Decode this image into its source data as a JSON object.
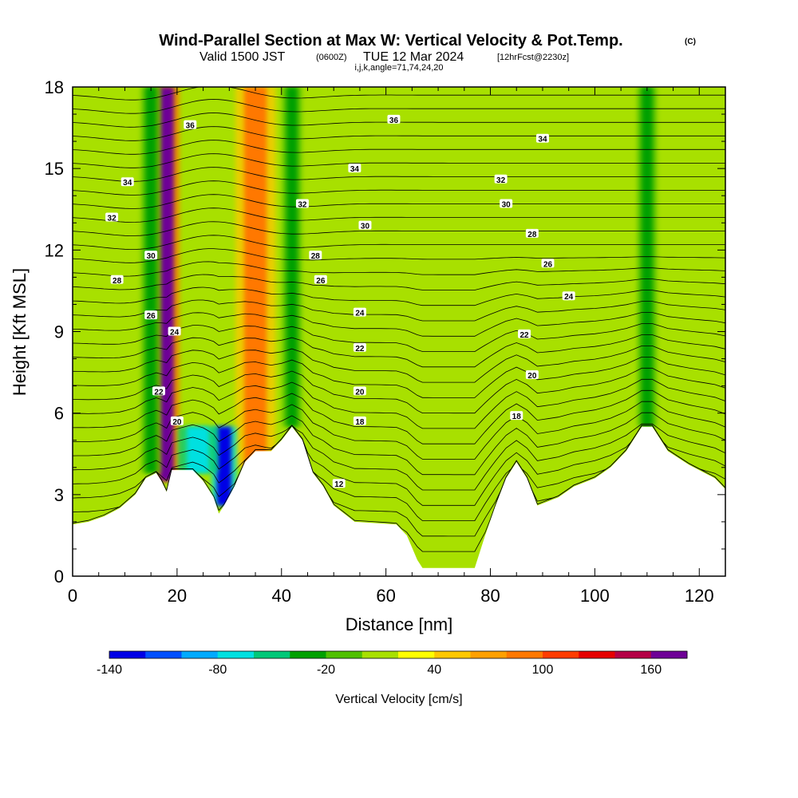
{
  "header": {
    "title": "Wind-Parallel Section at Max W: Vertical Velocity & Pot.Temp.",
    "copyright": "(C)",
    "valid_prefix": "Valid 1500 JST",
    "valid_zulu": "(0600Z)",
    "valid_date": "TUE 12 Mar 2024",
    "forecast": "[12hrFcst@2230z]",
    "indices": "i,j,k,angle=71,74,24,20"
  },
  "chart_data": {
    "type": "heatmap",
    "title": "Wind-Parallel Section at Max W: Vertical Velocity & Pot.Temp.",
    "xlabel": "Distance [nm]",
    "ylabel": "Height [Kft MSL]",
    "xlim": [
      0,
      125
    ],
    "ylim": [
      0,
      18
    ],
    "x_ticks": [
      0,
      20,
      40,
      60,
      80,
      100,
      120
    ],
    "y_ticks": [
      0,
      3,
      6,
      9,
      12,
      15,
      18
    ],
    "colorbar": {
      "title": "Vertical Velocity [cm/s]",
      "min": -140,
      "max": 180,
      "step": 20,
      "tick_values": [
        -140,
        -80,
        -20,
        40,
        100,
        160
      ],
      "colors": [
        "#0000e6",
        "#0050ff",
        "#00aaff",
        "#00e0e0",
        "#00c878",
        "#00a000",
        "#50c000",
        "#a8e000",
        "#ffff00",
        "#ffc800",
        "#ffa000",
        "#ff7800",
        "#ff3c00",
        "#e60000",
        "#b40046",
        "#6e0096"
      ]
    },
    "velocity_features": [
      {
        "name": "Strong updraft core",
        "x": 18,
        "y_bottom": 3.5,
        "y_top": 18,
        "w_cm_s": 170
      },
      {
        "name": "Updraft band",
        "x": 35,
        "y_bottom": 4,
        "y_top": 18,
        "w_cm_s": 90
      },
      {
        "name": "Downdraft core",
        "x": 29,
        "y_bottom": 2.6,
        "y_top": 5.5,
        "w_cm_s": -130
      },
      {
        "name": "Downdraft",
        "x": 24,
        "y_bottom": 3.8,
        "y_top": 5.5,
        "w_cm_s": -80
      },
      {
        "name": "Downdraft band",
        "x": 15,
        "y_bottom": 3.8,
        "y_top": 18,
        "w_cm_s": -30
      },
      {
        "name": "Downdraft band",
        "x": 42,
        "y_bottom": 5.5,
        "y_top": 18,
        "w_cm_s": -30
      },
      {
        "name": "Downdraft band",
        "x": 110,
        "y_bottom": 5.5,
        "y_top": 18,
        "w_cm_s": -30
      }
    ],
    "terrain": [
      [
        0,
        1.9
      ],
      [
        3,
        2.0
      ],
      [
        6,
        2.2
      ],
      [
        9,
        2.5
      ],
      [
        12,
        3.0
      ],
      [
        14,
        3.6
      ],
      [
        16,
        3.8
      ],
      [
        17,
        3.5
      ],
      [
        18,
        3.1
      ],
      [
        19,
        3.9
      ],
      [
        23,
        3.9
      ],
      [
        25,
        3.5
      ],
      [
        27,
        2.9
      ],
      [
        28,
        2.3
      ],
      [
        29,
        2.6
      ],
      [
        31,
        3.3
      ],
      [
        33,
        4.2
      ],
      [
        35,
        4.6
      ],
      [
        38,
        4.6
      ],
      [
        40,
        5.0
      ],
      [
        42,
        5.5
      ],
      [
        44,
        5.0
      ],
      [
        46,
        3.8
      ],
      [
        48,
        3.3
      ],
      [
        50,
        2.6
      ],
      [
        52,
        2.3
      ],
      [
        54,
        2.0
      ],
      [
        62,
        1.9
      ],
      [
        64,
        1.5
      ],
      [
        66,
        0.6
      ],
      [
        67,
        0.3
      ],
      [
        77,
        0.3
      ],
      [
        79,
        1.5
      ],
      [
        81,
        2.6
      ],
      [
        83,
        3.6
      ],
      [
        85,
        4.2
      ],
      [
        87,
        3.6
      ],
      [
        89,
        2.6
      ],
      [
        93,
        2.9
      ],
      [
        96,
        3.3
      ],
      [
        100,
        3.6
      ],
      [
        103,
        4.0
      ],
      [
        106,
        4.6
      ],
      [
        109,
        5.5
      ],
      [
        111,
        5.5
      ],
      [
        114,
        4.6
      ],
      [
        118,
        4.1
      ],
      [
        121,
        3.8
      ],
      [
        123,
        3.6
      ],
      [
        125,
        3.2
      ]
    ],
    "isentrope_labels": [
      {
        "x": 22.5,
        "y": 16.6,
        "text": "36"
      },
      {
        "x": 61.5,
        "y": 16.8,
        "text": "36"
      },
      {
        "x": 10.5,
        "y": 14.5,
        "text": "34"
      },
      {
        "x": 54.0,
        "y": 15.0,
        "text": "34"
      },
      {
        "x": 90.0,
        "y": 16.1,
        "text": "34"
      },
      {
        "x": 7.5,
        "y": 13.2,
        "text": "32"
      },
      {
        "x": 44.0,
        "y": 13.7,
        "text": "32"
      },
      {
        "x": 82.0,
        "y": 14.6,
        "text": "32"
      },
      {
        "x": 15.0,
        "y": 11.8,
        "text": "30"
      },
      {
        "x": 56.0,
        "y": 12.9,
        "text": "30"
      },
      {
        "x": 83.0,
        "y": 13.7,
        "text": "30"
      },
      {
        "x": 8.5,
        "y": 10.9,
        "text": "28"
      },
      {
        "x": 46.5,
        "y": 11.8,
        "text": "28"
      },
      {
        "x": 88.0,
        "y": 12.6,
        "text": "28"
      },
      {
        "x": 15.0,
        "y": 9.6,
        "text": "26"
      },
      {
        "x": 47.5,
        "y": 10.9,
        "text": "26"
      },
      {
        "x": 91.0,
        "y": 11.5,
        "text": "26"
      },
      {
        "x": 19.5,
        "y": 9.0,
        "text": "24"
      },
      {
        "x": 55.0,
        "y": 9.7,
        "text": "24"
      },
      {
        "x": 95.0,
        "y": 10.3,
        "text": "24"
      },
      {
        "x": 16.5,
        "y": 6.8,
        "text": "22"
      },
      {
        "x": 55.0,
        "y": 8.4,
        "text": "22"
      },
      {
        "x": 86.5,
        "y": 8.9,
        "text": "22"
      },
      {
        "x": 20.0,
        "y": 5.7,
        "text": "20"
      },
      {
        "x": 55.0,
        "y": 6.8,
        "text": "20"
      },
      {
        "x": 88.0,
        "y": 7.4,
        "text": "20"
      },
      {
        "x": 55.0,
        "y": 5.7,
        "text": "18"
      },
      {
        "x": 85.0,
        "y": 5.9,
        "text": "18"
      },
      {
        "x": 51.0,
        "y": 3.4,
        "text": "12"
      }
    ]
  },
  "colors": {
    "background_field": "#a8e000",
    "terrain": "#ffffff",
    "isentrope": "#000000",
    "frame": "#000000"
  }
}
